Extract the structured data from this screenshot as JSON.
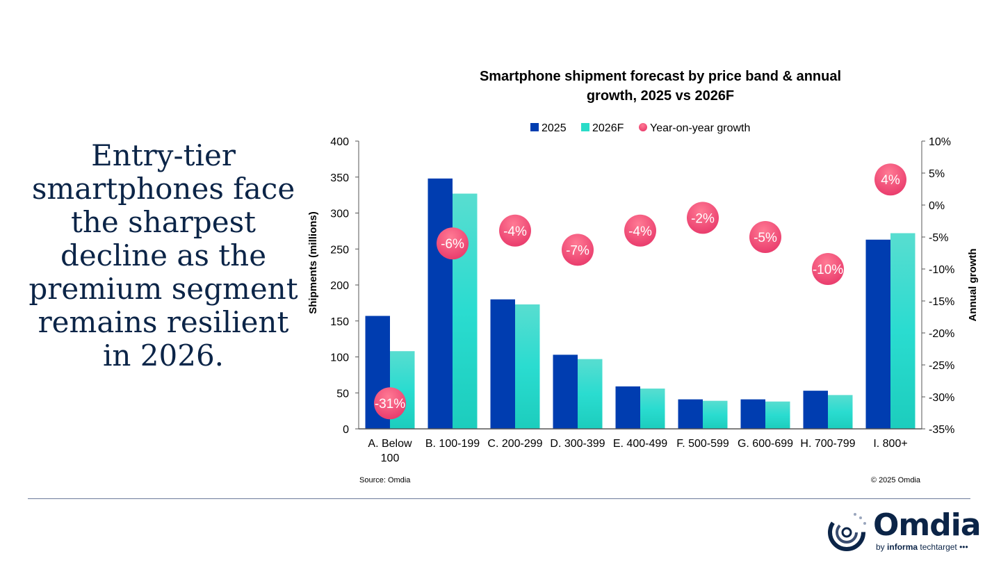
{
  "headline": "Entry-tier smartphones face the sharpest decline as the premium segment remains resilient in 2026.",
  "colors": {
    "bar_2025": "#003db0",
    "bar_2026F": "#2adcc8",
    "growth_bubble": "#f0486e",
    "headline": "#0b2447"
  },
  "chart_data": {
    "type": "bar",
    "title_line1": "Smartphone shipment forecast by price band & annual",
    "title_line2": "growth, 2025 vs 2026F",
    "ylabel": "Shipments (millions)",
    "y2label": "Annual growth",
    "ylim": [
      0,
      400
    ],
    "y2lim": [
      -35,
      10
    ],
    "yticks": [
      "0",
      "50",
      "100",
      "150",
      "200",
      "250",
      "300",
      "350",
      "400"
    ],
    "y2ticks": [
      "-35%",
      "-30%",
      "-25%",
      "-20%",
      "-15%",
      "-10%",
      "-5%",
      "0%",
      "5%",
      "10%"
    ],
    "legend_position": "top",
    "categories": [
      "A. Below 100",
      "B. 100-199",
      "C. 200-299",
      "D. 300-399",
      "E. 400-499",
      "F. 500-599",
      "G. 600-699",
      "H. 700-799",
      "I. 800+"
    ],
    "series": [
      {
        "name": "2025",
        "type": "bar",
        "values": [
          157,
          348,
          180,
          103,
          59,
          41,
          41,
          53,
          263
        ]
      },
      {
        "name": "2026F",
        "type": "bar",
        "values": [
          108,
          327,
          173,
          97,
          56,
          39,
          38,
          47,
          272
        ]
      },
      {
        "name": "Year-on-year growth",
        "type": "scatter",
        "axis": "right",
        "values": [
          -31,
          -6,
          -4,
          -7,
          -4,
          -2,
          -5,
          -10,
          4
        ],
        "labels": [
          "-31%",
          "-6%",
          "-4%",
          "-7%",
          "-4%",
          "-2%",
          "-5%",
          "-10%",
          "4%"
        ]
      }
    ],
    "source": "Source: Omdia",
    "copyright": "© 2025 Omdia"
  },
  "logo": {
    "word": "Omdia",
    "sub_by": "by",
    "sub_informa": "informa",
    "sub_tt": "techtarget"
  }
}
